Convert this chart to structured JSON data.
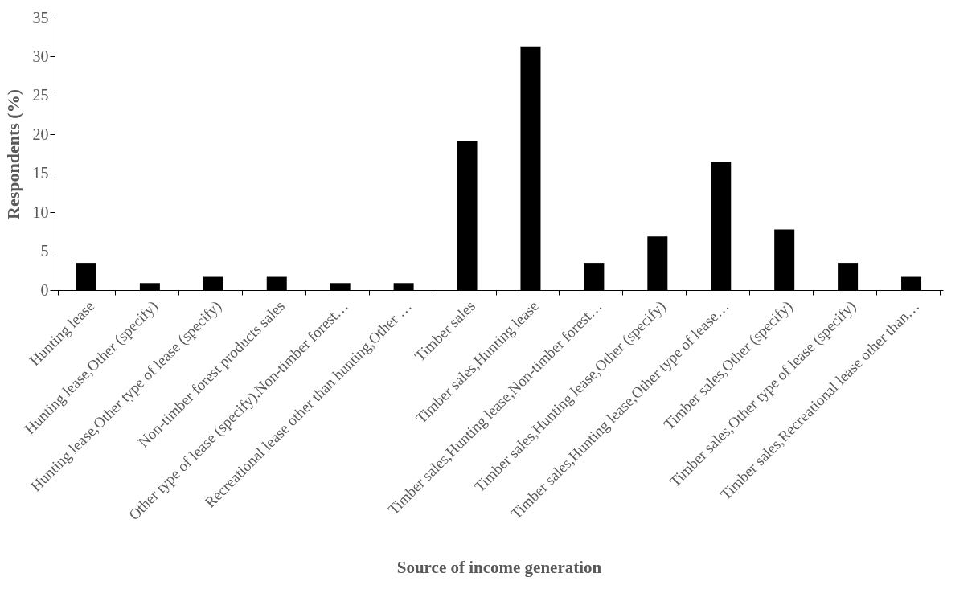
{
  "chart_data": {
    "type": "bar",
    "xlabel": "Source of income generation",
    "ylabel": "Respondents (%)",
    "categories": [
      "Hunting lease",
      "Hunting lease,Other (specify)",
      "Hunting lease,Other type of lease (specify)",
      "Non-timber forest products sales",
      "Other type of lease (specify),Non-timber forest…",
      "Recreational lease other than hunting,Other …",
      "Timber sales",
      "Timber sales,Hunting lease",
      "Timber sales,Hunting lease,Non-timber forest…",
      "Timber sales,Hunting lease,Other (specify)",
      "Timber sales,Hunting lease,Other type of lease…",
      "Timber sales,Other (specify)",
      "Timber sales,Other type of lease (specify)",
      "Timber sales,Recreational lease other than…"
    ],
    "values": [
      3.5,
      0.9,
      1.7,
      1.7,
      0.9,
      0.9,
      19.1,
      31.3,
      3.5,
      6.9,
      16.5,
      7.8,
      3.5,
      1.7
    ],
    "color": "#000000",
    "ylim": [
      0,
      35
    ],
    "yticks": [
      0,
      5,
      10,
      15,
      20,
      25,
      30,
      35
    ],
    "grid": false
  }
}
